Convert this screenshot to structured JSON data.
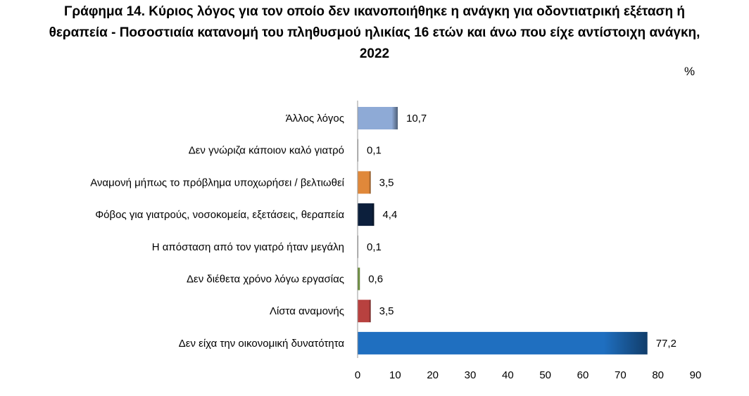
{
  "title_lines": [
    "Γράφημα 14. Κύριος λόγος για τον οποίο δεν ικανοποιήθηκε η ανάγκη για οδοντιατρική εξέταση ή",
    "θεραπεία - Ποσοστιαία κατανομή του πληθυσμού ηλικίας 16 ετών και άνω που είχε αντίστοιχη ανάγκη,",
    "2022"
  ],
  "unit": "%",
  "chart_data": {
    "type": "bar",
    "orientation": "horizontal",
    "title": "Γράφημα 14. Κύριος λόγος για τον οποίο δεν ικανοποιήθηκε η ανάγκη για οδοντιατρική εξέταση ή θεραπεία - Ποσοστιαία κατανομή του πληθυσμού ηλικίας 16 ετών και άνω που είχε αντίστοιχη ανάγκη, 2022",
    "unit": "%",
    "categories": [
      "Άλλος λόγος",
      "Δεν γνώριζα κάποιον καλό γιατρό",
      "Αναμονή μήπως το πρόβλημα υποχωρήσει / βελτιωθεί",
      "Φόβος για γιατρούς, νοσοκομεία, εξετάσεις, θεραπεία",
      "Η απόσταση από τον γιατρό ήταν μεγάλη",
      "Δεν διέθετα χρόνο λόγω εργασίας",
      "Λίστα αναμονής",
      "Δεν είχα την οικονομική δυνατότητα"
    ],
    "values": [
      10.7,
      0.1,
      3.5,
      4.4,
      0.1,
      0.6,
      3.5,
      77.2
    ],
    "value_labels": [
      "10,7",
      "0,1",
      "3,5",
      "4,4",
      "0,1",
      "0,6",
      "3,5",
      "77,2"
    ],
    "colors": [
      "#8eaad6",
      "#7f7f7f",
      "#e0883a",
      "#0c1f3c",
      "#7f7f7f",
      "#6a8c3a",
      "#b8413f",
      "#1f6fc0"
    ],
    "xlim": [
      0,
      90
    ],
    "xticks": [
      0,
      10,
      20,
      30,
      40,
      50,
      60,
      70,
      80,
      90
    ],
    "grid": false,
    "legend": "none"
  }
}
